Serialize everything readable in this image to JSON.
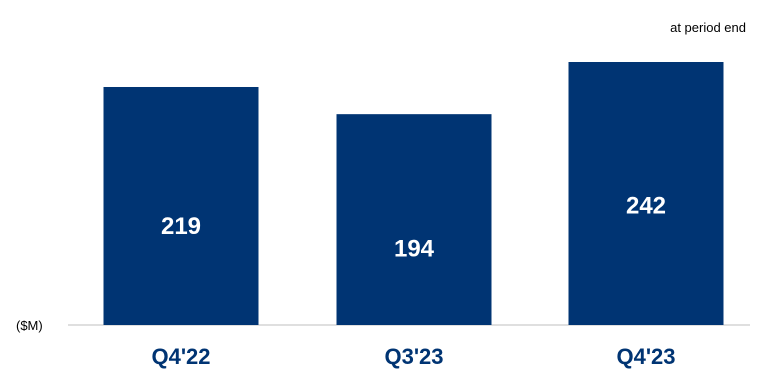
{
  "note": "at period end",
  "unit_label": "($M)",
  "colors": {
    "bar": "#003473",
    "tick_text": "#003473",
    "value_text": "#ffffff",
    "axis_line": "#bfbfbf"
  },
  "chart_data": {
    "type": "bar",
    "categories": [
      "Q4'22",
      "Q3'23",
      "Q4'23"
    ],
    "values": [
      219,
      194,
      242
    ],
    "data_labels": [
      "219",
      "194",
      "242"
    ],
    "title": "",
    "xlabel": "",
    "ylabel": "($M)",
    "ylim": [
      0,
      242
    ],
    "grid": false,
    "legend": "none"
  }
}
